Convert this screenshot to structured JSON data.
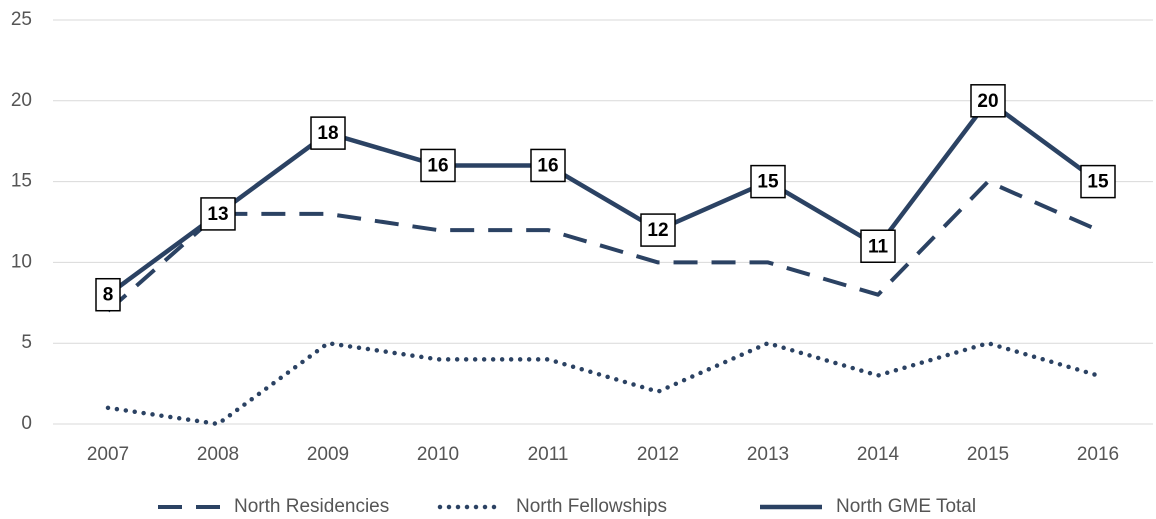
{
  "chart_data": {
    "type": "line",
    "categories": [
      "2007",
      "2008",
      "2009",
      "2010",
      "2011",
      "2012",
      "2013",
      "2014",
      "2015",
      "2016"
    ],
    "series": [
      {
        "name": "North Residencies",
        "color": "#2b4263",
        "line_style": "dashed",
        "values": [
          7,
          13,
          13,
          12,
          12,
          10,
          10,
          8,
          15,
          12
        ]
      },
      {
        "name": "North Fellowships",
        "color": "#2b4263",
        "line_style": "dotted",
        "values": [
          1,
          0,
          5,
          4,
          4,
          2,
          5,
          3,
          5,
          3
        ]
      },
      {
        "name": "North GME Total",
        "color": "#2b4263",
        "line_style": "solid",
        "show_labels": true,
        "values": [
          8,
          13,
          18,
          16,
          16,
          12,
          15,
          11,
          20,
          15
        ]
      }
    ],
    "ylim": [
      0,
      25
    ],
    "yticks": [
      0,
      5,
      10,
      15,
      20,
      25
    ],
    "grid": true,
    "legend": "bottom"
  }
}
